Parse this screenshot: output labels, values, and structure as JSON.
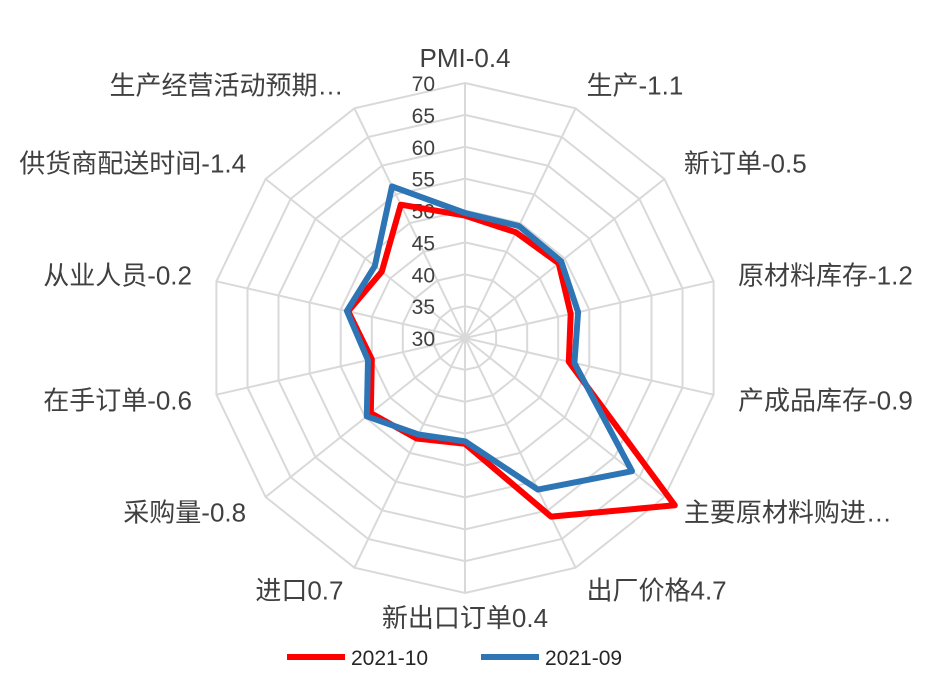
{
  "chart_data": {
    "type": "radar",
    "title": "",
    "categories": [
      "PMI-0.4",
      "生产-1.1",
      "新订单-0.5",
      "原材料库存-1.2",
      "产成品库存-0.9",
      "主要原材料购进…",
      "出厂价格4.7",
      "新出口订单0.4",
      "进口0.7",
      "采购量-0.8",
      "在手订单-0.6",
      "从业人员-0.2",
      "供货商配送时间-1.4",
      "生产经营活动预期…"
    ],
    "axis": {
      "min": 30,
      "max": 70,
      "step": 5,
      "ticks": [
        "30",
        "35",
        "40",
        "45",
        "50",
        "55",
        "60",
        "65",
        "70"
      ]
    },
    "grid": true,
    "legend_position": "bottom",
    "series": [
      {
        "name": "2021-10",
        "color": "#ff0000",
        "values": [
          49.2,
          48.4,
          48.8,
          47.0,
          46.7,
          72.1,
          61.1,
          46.6,
          47.5,
          48.9,
          45.0,
          48.8,
          46.7,
          53.2
        ]
      },
      {
        "name": "2021-09",
        "color": "#2e75b6",
        "values": [
          49.6,
          49.5,
          49.3,
          48.2,
          47.6,
          63.5,
          56.4,
          46.2,
          46.8,
          49.7,
          45.6,
          49.0,
          48.1,
          56.4
        ]
      }
    ]
  }
}
